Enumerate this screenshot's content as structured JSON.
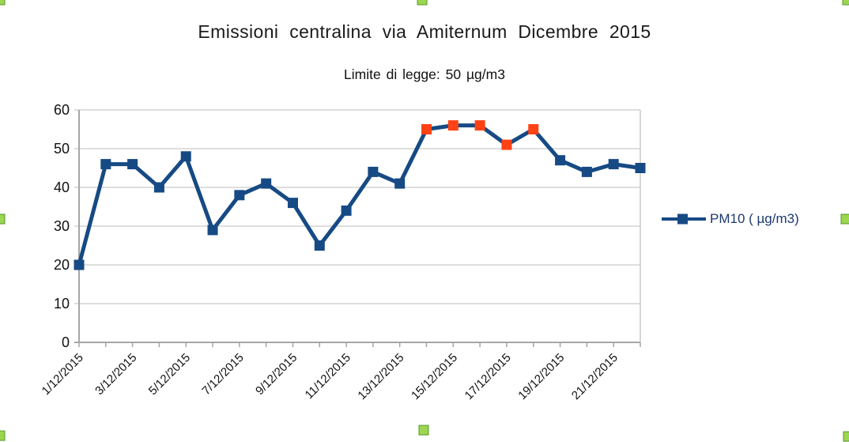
{
  "chart_data": {
    "type": "line",
    "title": "Emissioni centralina via Amiternum Dicembre 2015",
    "subtitle": "Limite di legge: 50 µg/m3",
    "legend": {
      "label": "PM10 ( µg/m3)",
      "position": "right",
      "text_color": "#1c3a6e"
    },
    "x": [
      "1/12/2015",
      "2/12/2015",
      "3/12/2015",
      "4/12/2015",
      "5/12/2015",
      "6/12/2015",
      "7/12/2015",
      "8/12/2015",
      "9/12/2015",
      "10/12/2015",
      "11/12/2015",
      "12/12/2015",
      "13/12/2015",
      "14/12/2015",
      "15/12/2015",
      "16/12/2015",
      "17/12/2015",
      "18/12/2015",
      "19/12/2015",
      "20/12/2015",
      "21/12/2015",
      "22/12/2015"
    ],
    "series": [
      {
        "name": "PM10 ( µg/m3)",
        "values": [
          20,
          46,
          46,
          40,
          48,
          29,
          38,
          41,
          36,
          25,
          34,
          44,
          41,
          55,
          56,
          56,
          51,
          55,
          47,
          44,
          46,
          45
        ],
        "line_color": "#164a84",
        "marker": "square",
        "marker_color": "#164a84",
        "above_limit_marker_color": "#ff4214"
      }
    ],
    "limit_value": 50,
    "ylim": [
      0,
      60
    ],
    "y_ticks": [
      0,
      10,
      20,
      30,
      40,
      50,
      60
    ],
    "x_label_every": 2,
    "x_label_rotation_deg": -45,
    "grid": true,
    "grid_color": "#c9c9c9",
    "axis_color": "#a6a6a6",
    "tick_label_color": "#111111"
  },
  "selection": {
    "state": "chart-object-selected",
    "handle_fill": "#9cd64e",
    "handle_border": "#54972c",
    "handles": [
      "top-left",
      "top-center",
      "top-right",
      "middle-left",
      "middle-right",
      "bottom-left",
      "bottom-center",
      "bottom-right"
    ]
  }
}
